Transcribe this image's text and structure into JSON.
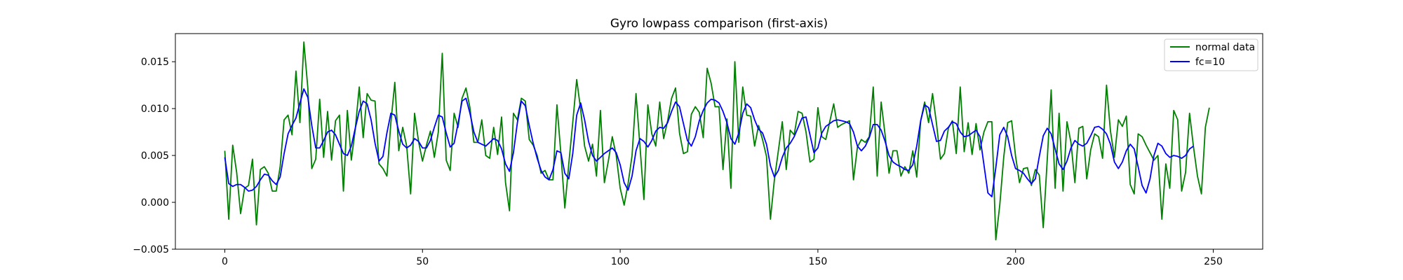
{
  "chart_data": {
    "type": "line",
    "title": "Gyro lowpass comparison (first-axis)",
    "xlabel": "",
    "ylabel": "",
    "xlim": [
      -12.5,
      262.5
    ],
    "ylim": [
      -0.005,
      0.018
    ],
    "xticks": [
      0,
      50,
      100,
      150,
      200,
      250
    ],
    "yticks": [
      -0.005,
      0.0,
      0.005,
      0.01,
      0.015
    ],
    "ytick_labels": [
      "−0.005",
      "0.000",
      "0.005",
      "0.010",
      "0.015"
    ],
    "grid": false,
    "legend_position": "top-right",
    "series": [
      {
        "name": "normal data",
        "color": "#008000",
        "values": [
          0.0055,
          -0.0018,
          0.0061,
          0.0032,
          -0.0012,
          0.0015,
          0.0018,
          0.0046,
          -0.0024,
          0.0035,
          0.0038,
          0.0031,
          0.0012,
          0.0012,
          0.0038,
          0.0088,
          0.0093,
          0.0072,
          0.014,
          0.0085,
          0.0171,
          0.0122,
          0.0036,
          0.0046,
          0.011,
          0.0048,
          0.0097,
          0.0045,
          0.0087,
          0.0093,
          0.0012,
          0.0098,
          0.0045,
          0.0078,
          0.0123,
          0.0069,
          0.0116,
          0.0109,
          0.0108,
          0.0041,
          0.0036,
          0.0028,
          0.0085,
          0.0128,
          0.0055,
          0.008,
          0.006,
          0.0009,
          0.0095,
          0.0065,
          0.0044,
          0.0061,
          0.0076,
          0.0048,
          0.0075,
          0.0159,
          0.0045,
          0.0034,
          0.0095,
          0.008,
          0.0111,
          0.0122,
          0.0101,
          0.0064,
          0.0064,
          0.0088,
          0.005,
          0.0047,
          0.008,
          0.0051,
          0.0091,
          0.0021,
          -0.0009,
          0.0095,
          0.0088,
          0.0111,
          0.0108,
          0.0067,
          0.0061,
          0.005,
          0.0031,
          0.0034,
          0.0024,
          0.0024,
          0.0104,
          0.0052,
          -0.0006,
          0.0041,
          0.0085,
          0.0131,
          0.0099,
          0.006,
          0.0044,
          0.0062,
          0.0028,
          0.0098,
          0.0021,
          0.0044,
          0.007,
          0.005,
          0.0015,
          -0.0003,
          0.002,
          0.005,
          0.0116,
          0.006,
          0.0003,
          0.0104,
          0.0073,
          0.006,
          0.0107,
          0.0068,
          0.0087,
          0.0111,
          0.0122,
          0.0074,
          0.0052,
          0.0054,
          0.0094,
          0.0102,
          0.0096,
          0.0069,
          0.0143,
          0.0127,
          0.0102,
          0.0102,
          0.0035,
          0.0089,
          0.0015,
          0.015,
          0.0064,
          0.0123,
          0.0093,
          0.0092,
          0.006,
          0.0082,
          0.0067,
          0.0049,
          -0.0018,
          0.0024,
          0.0055,
          0.0086,
          0.0035,
          0.0077,
          0.0072,
          0.0097,
          0.0095,
          0.0075,
          0.0043,
          0.0046,
          0.0101,
          0.007,
          0.0067,
          0.0086,
          0.0105,
          0.008,
          0.0083,
          0.0085,
          0.0087,
          0.0024,
          0.0059,
          0.0067,
          0.0064,
          0.007,
          0.0123,
          0.0028,
          0.0107,
          0.0072,
          0.0031,
          0.0055,
          0.0055,
          0.0028,
          0.0038,
          0.0031,
          0.0055,
          0.0027,
          0.0087,
          0.0107,
          0.0085,
          0.0116,
          0.0084,
          0.0046,
          0.0052,
          0.0079,
          0.0087,
          0.0052,
          0.0123,
          0.0054,
          0.0085,
          0.0051,
          0.0084,
          0.0056,
          0.0075,
          0.0086,
          0.0086,
          -0.004,
          -0.0003,
          0.0048,
          0.0085,
          0.0087,
          0.0049,
          0.0021,
          0.0036,
          0.0037,
          0.0018,
          0.0035,
          0.0029,
          -0.0027,
          0.0045,
          0.012,
          0.0015,
          0.0095,
          0.0012,
          0.0086,
          0.0064,
          0.0021,
          0.0079,
          0.0081,
          0.0025,
          0.0056,
          0.0073,
          0.007,
          0.0047,
          0.0125,
          0.0076,
          0.0048,
          0.0088,
          0.0081,
          0.0092,
          0.0019,
          0.0009,
          0.0073,
          0.007,
          0.0061,
          0.0053,
          0.0045,
          0.005,
          -0.0018,
          0.0041,
          0.0015,
          0.0098,
          0.0088,
          0.0012,
          0.0032,
          0.0095,
          0.0059,
          0.0028,
          0.0009,
          0.008,
          0.0101
        ]
      },
      {
        "name": "fc=10",
        "color": "#0000ff",
        "values": [
          0.0048,
          0.002,
          0.0017,
          0.0019,
          0.0019,
          0.0016,
          0.0012,
          0.0013,
          0.0017,
          0.0024,
          0.003,
          0.0029,
          0.0023,
          0.0019,
          0.0027,
          0.0052,
          0.0073,
          0.0082,
          0.009,
          0.0106,
          0.0121,
          0.0112,
          0.0082,
          0.0058,
          0.0058,
          0.0066,
          0.0075,
          0.0077,
          0.0072,
          0.0062,
          0.0052,
          0.005,
          0.006,
          0.0079,
          0.0097,
          0.0108,
          0.0105,
          0.0088,
          0.0063,
          0.0044,
          0.0049,
          0.0074,
          0.0095,
          0.0093,
          0.0076,
          0.0062,
          0.0058,
          0.0061,
          0.0068,
          0.0065,
          0.0058,
          0.0058,
          0.0066,
          0.008,
          0.0093,
          0.0091,
          0.0074,
          0.0059,
          0.0063,
          0.0084,
          0.0108,
          0.0111,
          0.0095,
          0.0075,
          0.0064,
          0.0062,
          0.006,
          0.0064,
          0.0068,
          0.0066,
          0.0057,
          0.0041,
          0.0033,
          0.0053,
          0.0085,
          0.0108,
          0.0103,
          0.0082,
          0.0063,
          0.0047,
          0.0034,
          0.0027,
          0.0024,
          0.0035,
          0.0055,
          0.0053,
          0.0031,
          0.0025,
          0.0052,
          0.0093,
          0.0106,
          0.0088,
          0.0065,
          0.005,
          0.0044,
          0.0048,
          0.0052,
          0.0055,
          0.0058,
          0.0053,
          0.004,
          0.0021,
          0.0013,
          0.0028,
          0.0055,
          0.0068,
          0.0065,
          0.0059,
          0.0066,
          0.0076,
          0.008,
          0.0079,
          0.0085,
          0.0097,
          0.0107,
          0.0102,
          0.0084,
          0.0066,
          0.006,
          0.007,
          0.0087,
          0.0098,
          0.0106,
          0.011,
          0.0109,
          0.0106,
          0.0097,
          0.0085,
          0.0068,
          0.0062,
          0.0074,
          0.0095,
          0.0105,
          0.0101,
          0.0088,
          0.0078,
          0.0074,
          0.0062,
          0.0039,
          0.0027,
          0.0034,
          0.0048,
          0.0058,
          0.0063,
          0.007,
          0.008,
          0.009,
          0.0091,
          0.0072,
          0.0053,
          0.0058,
          0.0074,
          0.0081,
          0.0084,
          0.0087,
          0.0088,
          0.0087,
          0.0086,
          0.0084,
          0.0075,
          0.006,
          0.0055,
          0.006,
          0.0069,
          0.0083,
          0.0083,
          0.0077,
          0.0065,
          0.005,
          0.0043,
          0.004,
          0.0038,
          0.0035,
          0.0034,
          0.004,
          0.006,
          0.0087,
          0.0104,
          0.0101,
          0.0083,
          0.0065,
          0.0066,
          0.0076,
          0.008,
          0.0086,
          0.0084,
          0.0075,
          0.007,
          0.0071,
          0.0074,
          0.0077,
          0.007,
          0.004,
          0.001,
          0.0006,
          0.0037,
          0.0072,
          0.008,
          0.007,
          0.005,
          0.0036,
          0.0034,
          0.0031,
          0.0025,
          0.002,
          0.0025,
          0.0049,
          0.0071,
          0.0079,
          0.0073,
          0.0057,
          0.0041,
          0.0035,
          0.0044,
          0.0058,
          0.0066,
          0.0062,
          0.006,
          0.0063,
          0.0071,
          0.008,
          0.0081,
          0.0078,
          0.0073,
          0.0062,
          0.0043,
          0.0036,
          0.0043,
          0.0055,
          0.0062,
          0.0057,
          0.0038,
          0.0018,
          0.001,
          0.0025,
          0.005,
          0.0063,
          0.006,
          0.0052,
          0.0048,
          0.005,
          0.0049,
          0.0047,
          0.005,
          0.0057,
          0.006
        ]
      }
    ]
  }
}
